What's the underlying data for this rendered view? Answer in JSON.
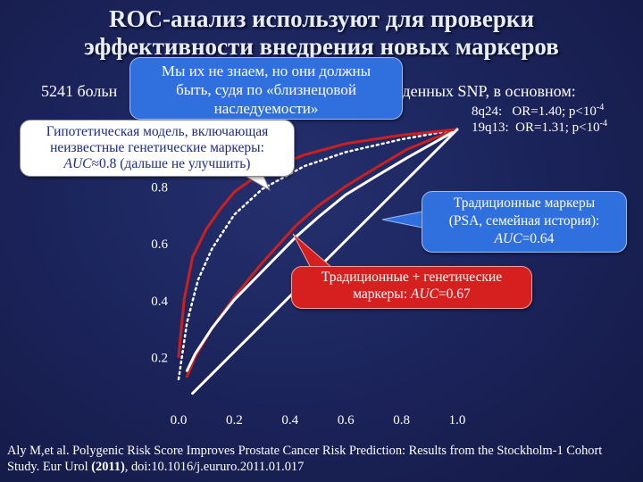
{
  "slide": {
    "title_line1": "ROC-анализ используют для проверки",
    "title_line2": "эффективности внедрения новых маркеров",
    "subtitle_start": "5241 больн",
    "subtitle_end": "ержденных SNP, в основном:",
    "snp": [
      {
        "locus": "8q24:",
        "or": "OR=1.40;",
        "p": "p<10",
        "exp": "-4"
      },
      {
        "locus": "19q13:",
        "or": "OR=1.31;",
        "p": "p<10",
        "exp": "-4"
      }
    ],
    "callout_twin": [
      "Мы их не знаем, но они должны",
      "быть, судя по «близнецовой",
      "наследуемости»"
    ],
    "callout_hypo": [
      "Гипотетическая модель, включающая",
      "неизвестные генетические маркеры:"
    ],
    "callout_hypo_auc_label": "AUC",
    "callout_hypo_auc_rest": "≈0.8 (дальше не улучшить)",
    "callout_trad": [
      "Традиционные маркеры",
      "(PSA, семейная история):"
    ],
    "callout_trad_auc_label": "AUC",
    "callout_trad_auc_rest": "=0.64",
    "callout_comb": [
      "Традиционные + генетические"
    ],
    "callout_comb_auc_prefix": "маркеры: ",
    "callout_comb_auc_label": "AUC",
    "callout_comb_auc_rest": "=0.67",
    "citation_part1": "Aly M,et al. Polygenic Risk Score Improves Prostate Cancer Risk Prediction: Results from the Stockholm-1  Cohort Study. Eur Urol ",
    "citation_year": "(2011)",
    "citation_part2": ", doi:10.1016/j.eururo.2011.01.017"
  },
  "chart_data": {
    "type": "line",
    "xlim": [
      0,
      1
    ],
    "ylim": [
      0,
      1
    ],
    "x_ticks": [
      "0.0",
      "0.2",
      "0.4",
      "0.6",
      "0.8",
      "1.0"
    ],
    "y_ticks": [
      "0.2",
      "0.4",
      "0.6",
      "0.8"
    ],
    "series": [
      {
        "color": "#ffffff",
        "style": "dotted",
        "points": [
          [
            0.0,
            0.12
          ],
          [
            0.03,
            0.32
          ],
          [
            0.07,
            0.47
          ],
          [
            0.12,
            0.58
          ],
          [
            0.2,
            0.7
          ],
          [
            0.3,
            0.79
          ],
          [
            0.45,
            0.87
          ],
          [
            0.6,
            0.92
          ],
          [
            0.8,
            0.965
          ],
          [
            1.0,
            1.0
          ]
        ]
      },
      {
        "color": "#cc1f1f",
        "style": "solid",
        "points": [
          [
            0.03,
            0.13
          ],
          [
            0.06,
            0.2
          ],
          [
            0.12,
            0.3
          ],
          [
            0.2,
            0.41
          ],
          [
            0.3,
            0.53
          ],
          [
            0.42,
            0.66
          ],
          [
            0.5,
            0.73
          ],
          [
            0.6,
            0.8
          ],
          [
            0.7,
            0.86
          ],
          [
            0.82,
            0.93
          ],
          [
            0.92,
            0.97
          ],
          [
            1.0,
            1.0
          ]
        ]
      },
      {
        "color": "#ffffff",
        "style": "solid",
        "points": [
          [
            0.03,
            0.15
          ],
          [
            0.06,
            0.21
          ],
          [
            0.12,
            0.3
          ],
          [
            0.2,
            0.4
          ],
          [
            0.3,
            0.5
          ],
          [
            0.42,
            0.62
          ],
          [
            0.5,
            0.69
          ],
          [
            0.6,
            0.77
          ],
          [
            0.7,
            0.83
          ],
          [
            0.82,
            0.9
          ],
          [
            0.92,
            0.955
          ],
          [
            1.0,
            1.0
          ]
        ]
      },
      {
        "color": "#cc1f1f",
        "style": "solid",
        "points": [
          [
            0.0,
            0.2
          ],
          [
            0.02,
            0.4
          ],
          [
            0.05,
            0.55
          ],
          [
            0.1,
            0.65
          ],
          [
            0.15,
            0.72
          ],
          [
            0.2,
            0.78
          ],
          [
            0.3,
            0.85
          ],
          [
            0.45,
            0.91
          ],
          [
            0.6,
            0.95
          ],
          [
            0.8,
            0.98
          ],
          [
            1.0,
            1.0
          ]
        ]
      },
      {
        "color": "#ffffff",
        "style": "solid",
        "points": [
          [
            0.05,
            0.07
          ],
          [
            1.0,
            1.0
          ]
        ]
      }
    ]
  }
}
